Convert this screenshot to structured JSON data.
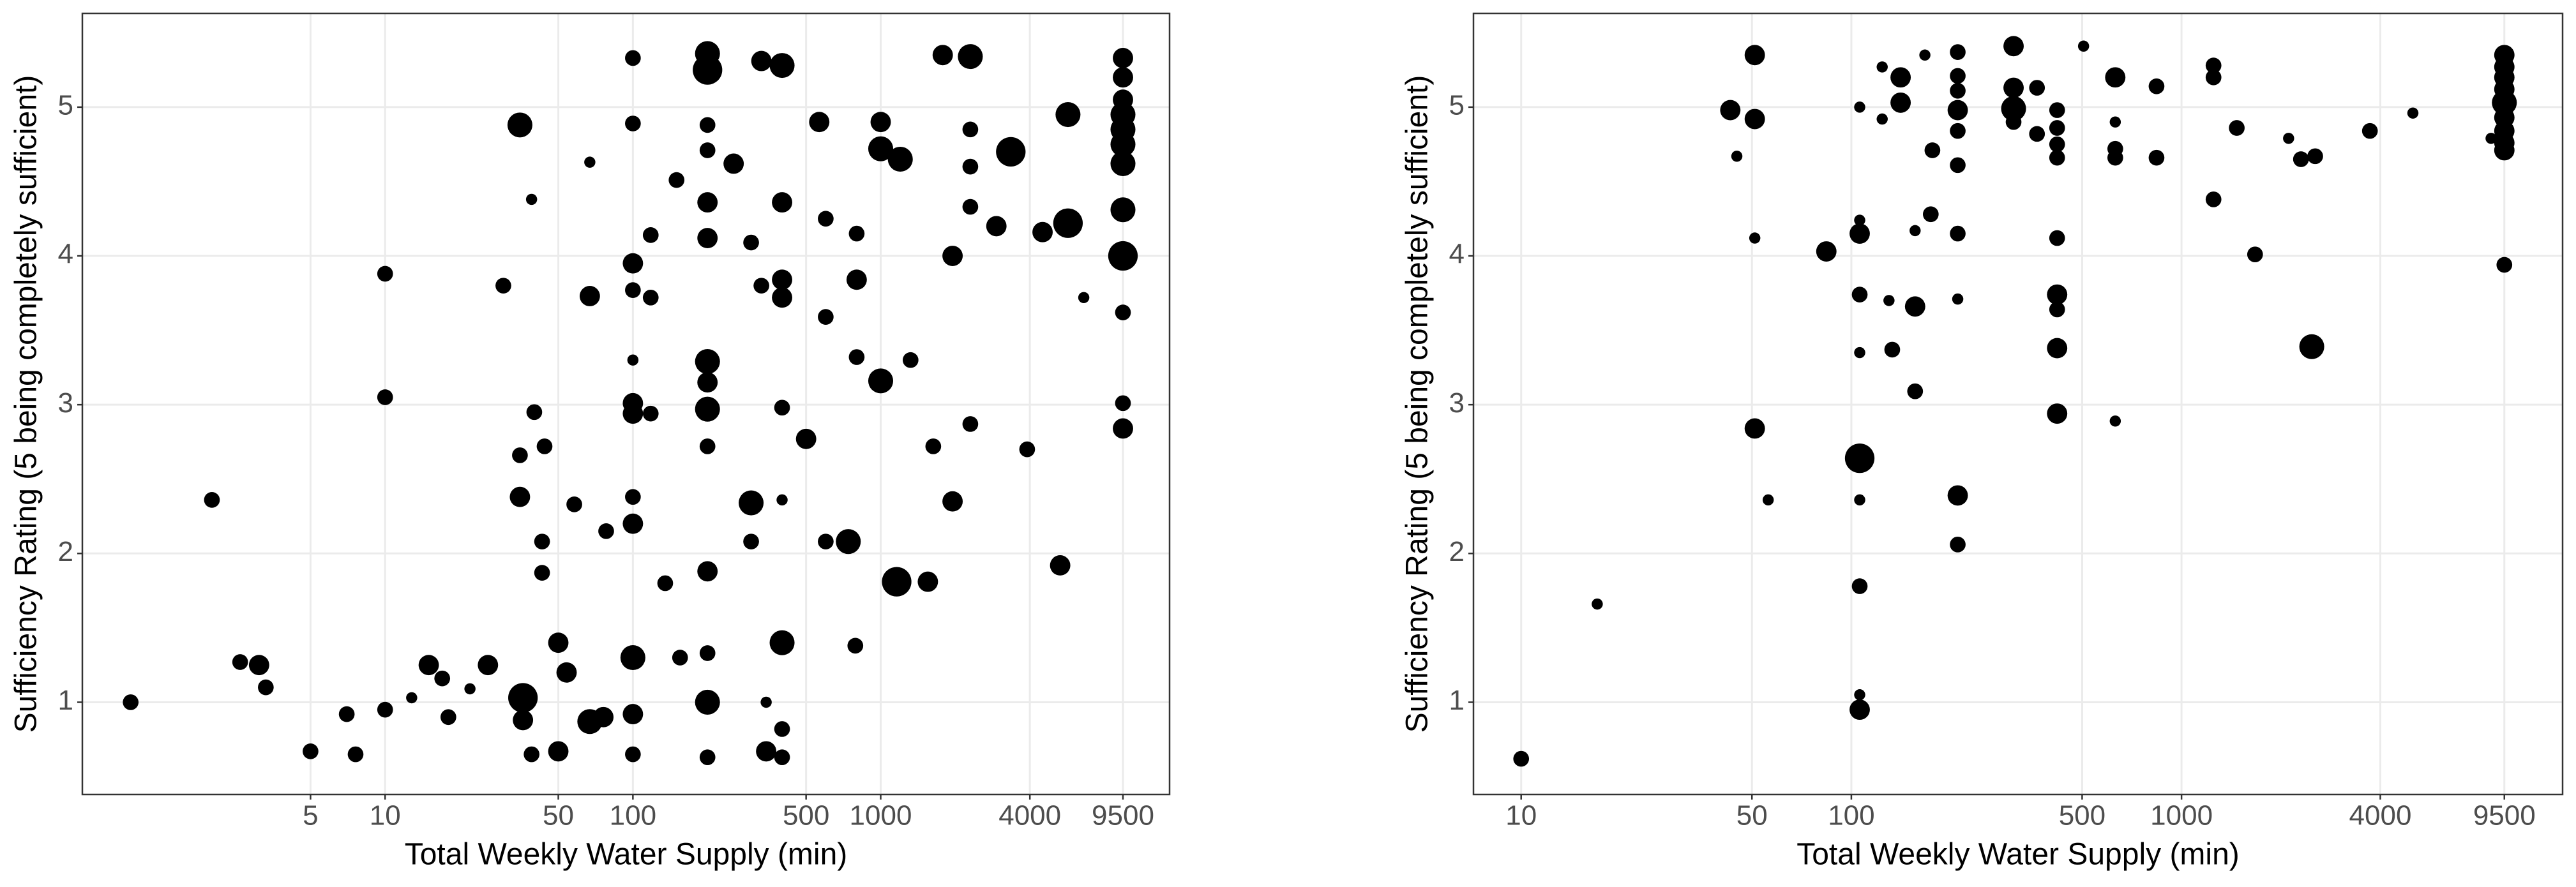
{
  "chart_data": [
    {
      "type": "scatter",
      "xscale": "log",
      "grid": true,
      "xlabel": "Total Weekly Water Supply (min)",
      "ylabel": "Sufficiency Rating (5 being completely sufficient)",
      "xlim": [
        0.6,
        14650
      ],
      "ylim": [
        0.38,
        5.63
      ],
      "xticks": [
        5,
        10,
        50,
        100,
        500,
        1000,
        4000,
        9500
      ],
      "yticks": [
        1,
        2,
        3,
        4,
        5
      ],
      "x": [
        0.94,
        2.0,
        2.6,
        3.1,
        3.3,
        5,
        7,
        7.6,
        10,
        10,
        10,
        12.8,
        15,
        17,
        18,
        22,
        26,
        30,
        35,
        35,
        35,
        36,
        36,
        39,
        39,
        40,
        43,
        43,
        44,
        50,
        50,
        54,
        58,
        67,
        67,
        67,
        78,
        76,
        100,
        100,
        100,
        100,
        100,
        100,
        100,
        100,
        100,
        100,
        100,
        100,
        118,
        118,
        118,
        135,
        150,
        155,
        200,
        200,
        200,
        200,
        200,
        200,
        200,
        200,
        200,
        200,
        200,
        200,
        200,
        200,
        255,
        300,
        300,
        300,
        330,
        330,
        345,
        345,
        400,
        400,
        400,
        400,
        400,
        400,
        400,
        400,
        400,
        500,
        565,
        600,
        600,
        600,
        740,
        790,
        800,
        800,
        800,
        1000,
        1000,
        1000,
        1160,
        1200,
        1320,
        1550,
        1630,
        1780,
        1950,
        1950,
        2300,
        2300,
        2300,
        2300,
        2300,
        2930,
        3350,
        3900,
        4500,
        5300,
        5700,
        5700,
        6600,
        9500,
        9500,
        9500,
        9500,
        9500,
        9500,
        9500,
        9500,
        9500,
        9500,
        9500,
        9500
      ],
      "series": [
        {
          "color": "#000000",
          "values": [
            1.0,
            2.36,
            1.27,
            1.25,
            1.1,
            0.67,
            0.92,
            0.65,
            3.88,
            3.05,
            0.95,
            1.03,
            1.25,
            1.16,
            0.9,
            1.09,
            1.25,
            3.8,
            4.88,
            2.38,
            2.66,
            1.03,
            0.88,
            0.65,
            4.38,
            2.95,
            2.08,
            1.87,
            2.72,
            1.4,
            0.67,
            1.2,
            2.33,
            3.73,
            4.63,
            0.87,
            2.15,
            0.9,
            5.33,
            4.89,
            3.95,
            3.77,
            3.3,
            3.01,
            2.94,
            2.38,
            2.2,
            1.3,
            0.92,
            0.65,
            4.14,
            3.72,
            2.94,
            1.8,
            4.51,
            1.3,
            5.36,
            5.25,
            4.88,
            4.71,
            4.36,
            4.12,
            3.29,
            3.15,
            2.97,
            2.72,
            1.88,
            1.33,
            1.0,
            0.63,
            4.62,
            4.09,
            2.08,
            2.34,
            5.31,
            3.8,
            1.0,
            0.67,
            5.28,
            4.36,
            3.84,
            3.72,
            2.98,
            2.36,
            1.4,
            0.82,
            0.63,
            2.77,
            4.9,
            4.25,
            3.59,
            2.08,
            2.08,
            1.38,
            3.32,
            3.84,
            4.15,
            4.9,
            4.72,
            3.16,
            1.81,
            4.65,
            3.3,
            1.81,
            2.72,
            5.35,
            4.0,
            2.35,
            5.34,
            4.85,
            4.6,
            4.33,
            2.87,
            4.2,
            4.7,
            2.7,
            4.16,
            1.92,
            4.22,
            4.95,
            3.72,
            5.33,
            5.2,
            5.05,
            4.95,
            4.85,
            4.75,
            4.62,
            4.31,
            4.0,
            3.62,
            3.01,
            2.84
          ],
          "sizes": [
            2,
            2,
            2,
            3,
            2,
            2,
            2,
            2,
            2,
            2,
            2,
            1,
            3,
            2,
            2,
            1,
            3,
            2,
            4,
            3,
            2,
            5,
            3,
            2,
            1,
            2,
            2,
            2,
            2,
            3,
            3,
            3,
            2,
            3,
            1,
            4,
            2,
            3,
            2,
            2,
            3,
            2,
            1,
            3,
            3,
            2,
            3,
            4,
            3,
            2,
            2,
            2,
            2,
            2,
            2,
            2,
            4,
            5,
            2,
            2,
            3,
            3,
            4,
            3,
            4,
            2,
            3,
            2,
            4,
            2,
            3,
            2,
            2,
            4,
            3,
            2,
            1,
            3,
            4,
            3,
            3,
            3,
            2,
            1,
            4,
            2,
            2,
            3,
            3,
            2,
            2,
            2,
            4,
            2,
            2,
            3,
            2,
            3,
            4,
            4,
            5,
            4,
            2,
            3,
            2,
            3,
            3,
            3,
            4,
            2,
            2,
            2,
            2,
            3,
            5,
            2,
            3,
            3,
            5,
            4,
            1,
            3,
            3,
            3,
            4,
            4,
            4,
            4,
            4,
            5,
            2,
            2,
            3
          ]
        }
      ]
    },
    {
      "type": "scatter",
      "xscale": "log",
      "grid": true,
      "xlabel": "Total Weekly Water Supply (min)",
      "ylabel": "Sufficiency Rating (5 being completely sufficient)",
      "xlim": [
        7.17,
        14260
      ],
      "ylim": [
        0.38,
        5.63
      ],
      "xticks": [
        10,
        50,
        100,
        500,
        1000,
        4000,
        9500
      ],
      "yticks": [
        1,
        2,
        3,
        4,
        5
      ],
      "x": [
        10,
        17,
        43,
        45,
        51,
        51,
        51,
        51,
        56,
        84,
        106,
        106,
        106,
        106,
        106,
        106,
        106,
        106,
        106,
        106,
        124,
        124,
        130,
        133,
        141,
        141,
        156,
        156,
        156,
        167,
        174,
        176,
        210,
        210,
        210,
        210,
        210,
        210,
        210,
        210,
        210,
        210,
        310,
        310,
        310,
        310,
        365,
        365,
        420,
        420,
        420,
        420,
        420,
        420,
        420,
        420,
        420,
        505,
        630,
        630,
        630,
        630,
        630,
        840,
        840,
        1250,
        1250,
        1250,
        1470,
        1670,
        2110,
        2300,
        2540,
        2480,
        3720,
        5020,
        8660,
        9500,
        9500,
        9500,
        9500,
        9500,
        9500,
        9500,
        9500,
        9500,
        9500
      ],
      "series": [
        {
          "color": "#000000",
          "values": [
            0.62,
            1.66,
            4.98,
            4.67,
            5.35,
            4.92,
            4.12,
            2.84,
            2.36,
            4.03,
            5.0,
            4.24,
            4.15,
            3.74,
            3.35,
            2.64,
            2.36,
            1.78,
            1.05,
            0.95,
            5.27,
            4.92,
            3.7,
            3.37,
            5.2,
            5.03,
            3.66,
            3.09,
            4.17,
            5.35,
            4.28,
            4.71,
            5.37,
            5.21,
            5.11,
            4.98,
            4.84,
            4.61,
            4.15,
            3.71,
            2.39,
            2.06,
            5.41,
            5.13,
            4.99,
            4.9,
            5.13,
            4.82,
            4.86,
            4.98,
            4.75,
            4.66,
            4.12,
            3.74,
            3.64,
            3.38,
            2.94,
            5.41,
            5.2,
            4.9,
            4.72,
            4.66,
            2.89,
            5.14,
            4.66,
            5.28,
            5.2,
            4.38,
            4.86,
            4.01,
            4.79,
            4.65,
            4.67,
            3.39,
            4.84,
            4.96,
            4.79,
            5.35,
            5.27,
            5.2,
            5.12,
            5.03,
            4.93,
            4.84,
            4.76,
            4.71,
            3.94
          ],
          "sizes": [
            2,
            1,
            3,
            1,
            3,
            3,
            1,
            3,
            1,
            3,
            1,
            1,
            3,
            2,
            1,
            5,
            1,
            2,
            1,
            3,
            1,
            1,
            1,
            2,
            3,
            3,
            3,
            2,
            1,
            1,
            2,
            2,
            2,
            2,
            2,
            3,
            2,
            2,
            2,
            1,
            3,
            2,
            3,
            3,
            4,
            2,
            2,
            2,
            2,
            2,
            2,
            2,
            2,
            3,
            2,
            3,
            3,
            1,
            3,
            1,
            2,
            2,
            1,
            2,
            2,
            2,
            2,
            2,
            2,
            2,
            1,
            2,
            2,
            4,
            2,
            1,
            1,
            3,
            3,
            3,
            3,
            4,
            3,
            3,
            3,
            3,
            2
          ]
        }
      ]
    }
  ]
}
